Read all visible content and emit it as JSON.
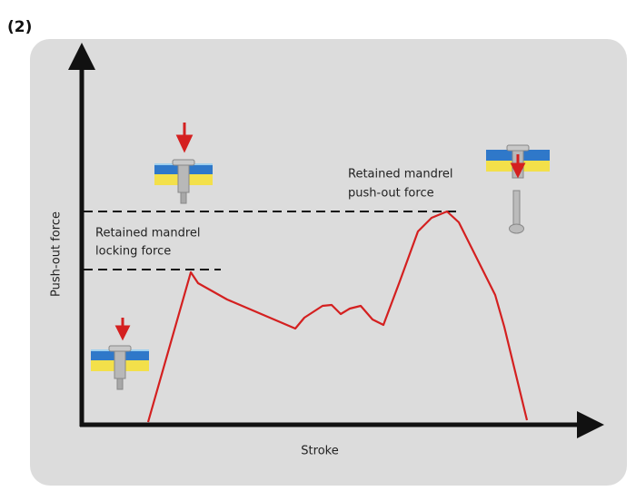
{
  "figure_label": "(2)",
  "annotations": [
    {
      "lines": [
        "Retained mandrel",
        "push-out force"
      ]
    },
    {
      "lines": [
        "Retained mandrel",
        "locking force"
      ]
    }
  ],
  "y_axis_label": "Push-out force",
  "x_axis_label": "Stroke"
}
